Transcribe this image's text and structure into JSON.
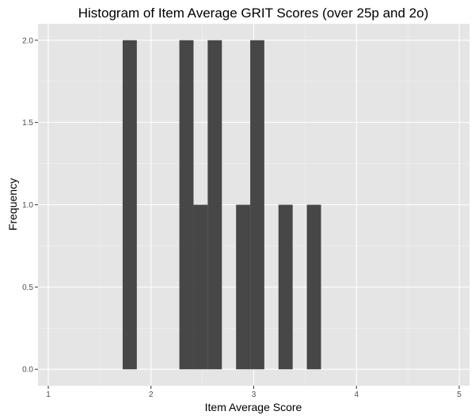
{
  "chart_data": {
    "type": "bar",
    "title": "Histogram of Item Average GRIT Scores (over 25p and 2o)",
    "xlabel": "Item Average Score",
    "ylabel": "Frequency",
    "xlim": [
      0.9,
      5.1
    ],
    "ylim": [
      -0.1,
      2.1
    ],
    "x_ticks": [
      1,
      2,
      3,
      4,
      5
    ],
    "x_tick_labels": [
      "1",
      "2",
      "3",
      "4",
      "5"
    ],
    "y_ticks": [
      0,
      0.5,
      1,
      1.5,
      2
    ],
    "y_tick_labels": [
      "0.0",
      "0.5",
      "1.0",
      "1.5",
      "2.0"
    ],
    "bin_width": 0.1379,
    "bins": [
      {
        "x0": 1.724,
        "x1": 1.862,
        "count": 2
      },
      {
        "x0": 2.276,
        "x1": 2.414,
        "count": 2
      },
      {
        "x0": 2.414,
        "x1": 2.552,
        "count": 1
      },
      {
        "x0": 2.552,
        "x1": 2.69,
        "count": 2
      },
      {
        "x0": 2.828,
        "x1": 2.966,
        "count": 1
      },
      {
        "x0": 2.966,
        "x1": 3.103,
        "count": 2
      },
      {
        "x0": 3.241,
        "x1": 3.379,
        "count": 1
      },
      {
        "x0": 3.517,
        "x1": 3.655,
        "count": 1
      }
    ],
    "grid": true,
    "colors": {
      "panel_background": "#e5e5e5",
      "grid_major": "#ffffff",
      "grid_minor": "#f2f2f2",
      "bar_fill": "#474747"
    }
  }
}
